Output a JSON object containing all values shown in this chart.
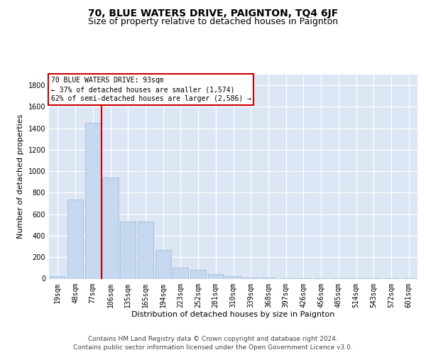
{
  "title": "70, BLUE WATERS DRIVE, PAIGNTON, TQ4 6JF",
  "subtitle": "Size of property relative to detached houses in Paignton",
  "xlabel": "Distribution of detached houses by size in Paignton",
  "ylabel": "Number of detached properties",
  "categories": [
    "19sqm",
    "48sqm",
    "77sqm",
    "106sqm",
    "135sqm",
    "165sqm",
    "194sqm",
    "223sqm",
    "252sqm",
    "281sqm",
    "310sqm",
    "339sqm",
    "368sqm",
    "397sqm",
    "426sqm",
    "456sqm",
    "485sqm",
    "514sqm",
    "543sqm",
    "572sqm",
    "601sqm"
  ],
  "values": [
    25,
    740,
    1450,
    940,
    530,
    530,
    265,
    100,
    80,
    40,
    25,
    10,
    8,
    5,
    5,
    5,
    5,
    5,
    5,
    5,
    5
  ],
  "bar_color": "#c5d8f0",
  "bar_edge_color": "#9ab5d5",
  "vline_bin_index": 2,
  "vline_color": "#cc0000",
  "annotation_line1": "70 BLUE WATERS DRIVE: 93sqm",
  "annotation_line2": "← 37% of detached houses are smaller (1,574)",
  "annotation_line3": "62% of semi-detached houses are larger (2,586) →",
  "annotation_box_facecolor": "#ffffff",
  "annotation_box_edgecolor": "#cc0000",
  "footer_text": "Contains HM Land Registry data © Crown copyright and database right 2024.\nContains public sector information licensed under the Open Government Licence v3.0.",
  "bg_color": "#dce6f5",
  "ylim_max": 1900,
  "yticks": [
    0,
    200,
    400,
    600,
    800,
    1000,
    1200,
    1400,
    1600,
    1800
  ],
  "title_fontsize": 10,
  "subtitle_fontsize": 9,
  "ylabel_fontsize": 8,
  "xlabel_fontsize": 8,
  "tick_fontsize": 7,
  "annot_fontsize": 7,
  "footer_fontsize": 6.5
}
